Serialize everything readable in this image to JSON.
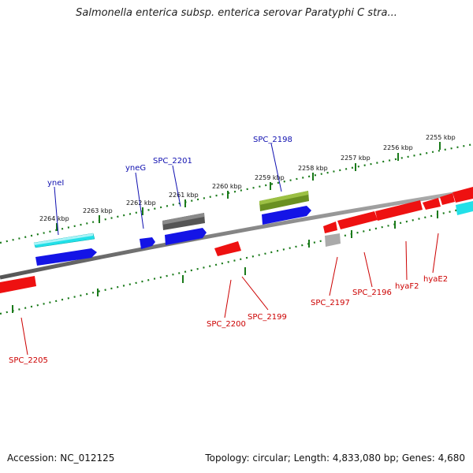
{
  "header": {
    "title": "Salmonella enterica subsp. enterica serovar Paratyphi C stra..."
  },
  "footer": {
    "accession": "Accession: NC_012125",
    "topology": "Topology: circular; Length: 4,833,080 bp; Genes: 4,680"
  },
  "scale": {
    "ticks": [
      "2255 kbp",
      "2256 kbp",
      "2257 kbp",
      "2258 kbp",
      "2259 kbp",
      "2260 kbp",
      "2261 kbp",
      "2262 kbp",
      "2263 kbp",
      "2264 kbp"
    ]
  },
  "genes": {
    "forward": [
      "yneI",
      "yneG",
      "SPC_2201",
      "SPC_2198"
    ],
    "reverse": [
      "SPC_2205",
      "SPC_2200",
      "SPC_2199",
      "SPC_2197",
      "SPC_2196",
      "hyaF2",
      "hyaE2"
    ]
  },
  "colors": {
    "backbone": "#808080",
    "tick": "#1a7a1a",
    "cyan": "#22e0e8",
    "blue": "#1414e6",
    "red": "#ee1111",
    "olive": "#6a9022",
    "darkgray": "#555555",
    "lightgray": "#aaaaaa",
    "label_blue": "#1010b0",
    "label_red": "#cc0000"
  }
}
